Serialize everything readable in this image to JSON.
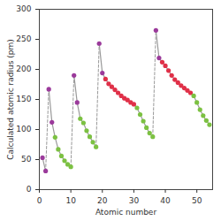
{
  "chart_data": {
    "type": "line",
    "xlabel": "Atomic number",
    "ylabel": "Calculated atomic radius (pm)",
    "xlim": [
      0,
      55
    ],
    "xticks": [
      0,
      10,
      20,
      30,
      40,
      50
    ],
    "ylim": [
      0,
      300
    ],
    "yticks": [
      0,
      50,
      100,
      150,
      200,
      250,
      300
    ],
    "grid": false,
    "color": "#9a9a9a",
    "marker": "circle",
    "series": [
      {
        "x": [
          1,
          2
        ],
        "values": [
          53,
          31
        ],
        "colors": [
          "#9b3a9b",
          "#9b3a9b"
        ]
      },
      {
        "x": [
          3,
          4,
          5,
          6,
          7,
          8,
          9,
          10
        ],
        "values": [
          167,
          112,
          87,
          67,
          56,
          48,
          42,
          38
        ],
        "colors": [
          "#9b3a9b",
          "#9b3a9b",
          "#7cc142",
          "#7cc142",
          "#7cc142",
          "#7cc142",
          "#7cc142",
          "#7cc142"
        ]
      },
      {
        "x": [
          11,
          12,
          13,
          14,
          15,
          16,
          17,
          18
        ],
        "values": [
          190,
          145,
          118,
          111,
          98,
          88,
          79,
          71
        ],
        "colors": [
          "#9b3a9b",
          "#9b3a9b",
          "#7cc142",
          "#7cc142",
          "#7cc142",
          "#7cc142",
          "#7cc142",
          "#7cc142"
        ]
      },
      {
        "x": [
          19,
          20,
          21,
          22,
          23,
          24,
          25,
          26,
          27,
          28,
          29,
          30,
          31,
          32,
          33,
          34,
          35,
          36
        ],
        "values": [
          243,
          194,
          184,
          176,
          171,
          166,
          161,
          156,
          152,
          149,
          145,
          142,
          136,
          125,
          114,
          103,
          94,
          88
        ],
        "colors": [
          "#9b3a9b",
          "#9b3a9b",
          "#e03048",
          "#e03048",
          "#e03048",
          "#e03048",
          "#e03048",
          "#e03048",
          "#e03048",
          "#e03048",
          "#e03048",
          "#e03048",
          "#7cc142",
          "#7cc142",
          "#7cc142",
          "#7cc142",
          "#7cc142",
          "#7cc142"
        ]
      },
      {
        "x": [
          37,
          38,
          39,
          40,
          41,
          42,
          43,
          44,
          45,
          46,
          47,
          48,
          49,
          50,
          51,
          52,
          53,
          54
        ],
        "values": [
          265,
          219,
          212,
          206,
          198,
          190,
          183,
          178,
          173,
          169,
          165,
          161,
          156,
          145,
          133,
          123,
          115,
          108
        ],
        "colors": [
          "#9b3a9b",
          "#9b3a9b",
          "#e03048",
          "#e03048",
          "#e03048",
          "#e03048",
          "#e03048",
          "#e03048",
          "#e03048",
          "#e03048",
          "#e03048",
          "#e03048",
          "#7cc142",
          "#7cc142",
          "#7cc142",
          "#7cc142",
          "#7cc142",
          "#7cc142"
        ]
      }
    ]
  }
}
